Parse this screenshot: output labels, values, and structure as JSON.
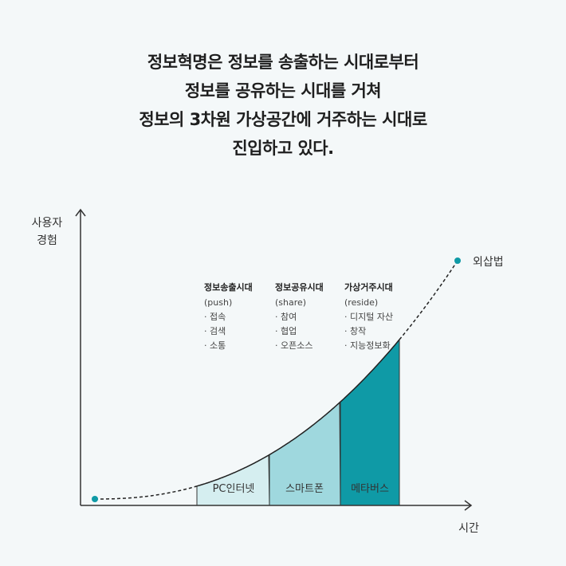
{
  "headline": [
    "정보혁명은 정보를 송출하는 시대로부터",
    "정보를 공유하는 시대를 거쳐",
    "정보의 3차원 가상공간에 거주하는 시대로",
    "진입하고 있다."
  ],
  "axes": {
    "y_label_lines": [
      "사용자",
      "경험"
    ],
    "x_label": "시간"
  },
  "curve_end_label": "외삽법",
  "segments": [
    {
      "label": "PC인터넷",
      "color": "#d5eef0"
    },
    {
      "label": "스마트폰",
      "color": "#9fd8de"
    },
    {
      "label": "메타버스",
      "color": "#0f9aa6"
    }
  ],
  "eras": [
    {
      "title": "정보송출시대",
      "sub": "(push)",
      "items": [
        "· 접속",
        "· 검색",
        "· 소통"
      ]
    },
    {
      "title": "정보공유시대",
      "sub": "(share)",
      "items": [
        "· 참여",
        "· 협업",
        "· 오픈소스"
      ]
    },
    {
      "title": "가상거주시대",
      "sub": "(reside)",
      "items": [
        "· 디지털 자산",
        "· 창작",
        "· 지능정보화"
      ]
    }
  ],
  "colors": {
    "accent": "#0f9aa6",
    "axis": "#333333",
    "background": "#f4f8f9"
  }
}
